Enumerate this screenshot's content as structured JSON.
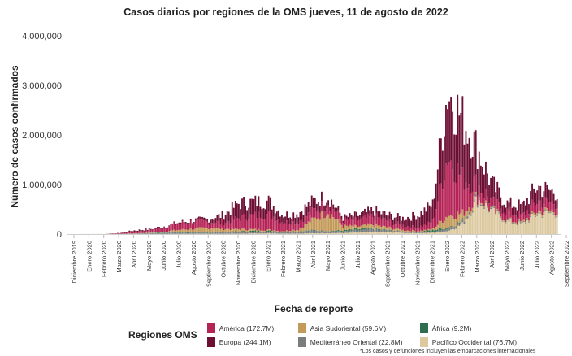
{
  "title": "Casos diarios por regiones de la OMS jueves, 11 de agosto de 2022",
  "legend_title": "Regiones OMS",
  "footnote": "*Los casos y defunciones incluyen las embarcaciones internacionales",
  "chart_data": {
    "type": "bar",
    "stacked": true,
    "title": "Casos diarios por regiones de la OMS jueves, 11 de agosto de 2022",
    "xlabel": "Fecha de reporte",
    "ylabel": "Número de casos confirmados",
    "ylim": [
      0,
      4000000
    ],
    "yticks": [
      0,
      1000000,
      2000000,
      3000000,
      4000000
    ],
    "ytick_labels": [
      "0",
      "1,000,000",
      "2,000,000",
      "3,000,000",
      "4,000,000"
    ],
    "x_tick_labels": [
      "Diciembre 2019",
      "Enero 2020",
      "Febrero 2020",
      "Marzo 2020",
      "Abril 2020",
      "Mayo 2020",
      "Junio 2020",
      "Julio 2020",
      "Agosto 2020",
      "Septiembre 2020",
      "Octubre 2020",
      "Noviembre 2020",
      "Diciembre 2020",
      "Enero 2021",
      "Febrero 2021",
      "Marzo 2021",
      "Abril 2021",
      "Mayo 2021",
      "Junio 2021",
      "Julio 2021",
      "Agosto 2021",
      "Septiembre 2021",
      "Octubre 2021",
      "Noviembre 2021",
      "Diciembre 2021",
      "Enero 2022",
      "Febrero 2022",
      "Marzo 2022",
      "Abril 2022",
      "Mayo 2022",
      "Junio 2022",
      "Julio 2022",
      "Agosto 2022",
      "Septiembre 2022"
    ],
    "grid": false,
    "legend_position": "bottom",
    "series_order": [
      "Pacífico Occidental",
      "Mediterráneo Oriental",
      "África",
      "Asia Sudoriental",
      "América",
      "Europa"
    ],
    "series": [
      {
        "name": "América (172.7M)",
        "color": "#b52456",
        "x": [
          "2019-12",
          "2020-01",
          "2020-02",
          "2020-03",
          "2020-04",
          "2020-05",
          "2020-06",
          "2020-07",
          "2020-08",
          "2020-09",
          "2020-10",
          "2020-11",
          "2020-12",
          "2021-01",
          "2021-02",
          "2021-03",
          "2021-04",
          "2021-05",
          "2021-06",
          "2021-07",
          "2021-08",
          "2021-09",
          "2021-10",
          "2021-11",
          "2021-12",
          "2022-01",
          "2022-02",
          "2022-03",
          "2022-04",
          "2022-05",
          "2022-06",
          "2022-07",
          "2022-08"
        ],
        "values": [
          0,
          0,
          0,
          10000,
          30000,
          50000,
          90000,
          130000,
          140000,
          120000,
          130000,
          220000,
          280000,
          320000,
          180000,
          150000,
          170000,
          190000,
          120000,
          130000,
          170000,
          130000,
          90000,
          70000,
          150000,
          1200000,
          700000,
          250000,
          150000,
          180000,
          130000,
          200000,
          170000
        ]
      },
      {
        "name": "Europa (244.1M)",
        "color": "#6d0f33",
        "x": [
          "2019-12",
          "2020-01",
          "2020-02",
          "2020-03",
          "2020-04",
          "2020-05",
          "2020-06",
          "2020-07",
          "2020-08",
          "2020-09",
          "2020-10",
          "2020-11",
          "2020-12",
          "2021-01",
          "2021-02",
          "2021-03",
          "2021-04",
          "2021-05",
          "2021-06",
          "2021-07",
          "2021-08",
          "2021-09",
          "2021-10",
          "2021-11",
          "2021-12",
          "2022-01",
          "2022-02",
          "2022-03",
          "2022-04",
          "2022-05",
          "2022-06",
          "2022-07",
          "2022-08"
        ],
        "values": [
          0,
          0,
          0,
          5000,
          30000,
          20000,
          15000,
          20000,
          30000,
          60000,
          150000,
          300000,
          280000,
          260000,
          150000,
          180000,
          200000,
          120000,
          50000,
          100000,
          120000,
          120000,
          150000,
          250000,
          350000,
          1300000,
          1200000,
          700000,
          350000,
          150000,
          200000,
          300000,
          220000
        ]
      },
      {
        "name": "Asia Sudoriental (59.6M)",
        "color": "#c49a5a",
        "x": [
          "2019-12",
          "2020-01",
          "2020-02",
          "2020-03",
          "2020-04",
          "2020-05",
          "2020-06",
          "2020-07",
          "2020-08",
          "2020-09",
          "2020-10",
          "2020-11",
          "2020-12",
          "2021-01",
          "2021-02",
          "2021-03",
          "2021-04",
          "2021-05",
          "2021-06",
          "2021-07",
          "2021-08",
          "2021-09",
          "2021-10",
          "2021-11",
          "2021-12",
          "2022-01",
          "2022-02",
          "2022-03",
          "2022-04",
          "2022-05",
          "2022-06",
          "2022-07",
          "2022-08"
        ],
        "values": [
          0,
          0,
          0,
          0,
          2000,
          8000,
          15000,
          40000,
          70000,
          95000,
          70000,
          45000,
          30000,
          20000,
          15000,
          35000,
          220000,
          380000,
          90000,
          50000,
          80000,
          50000,
          30000,
          20000,
          20000,
          250000,
          150000,
          30000,
          15000,
          15000,
          20000,
          40000,
          30000
        ]
      },
      {
        "name": "Europa (244.1M)",
        "color": "#6d0f33",
        "values": []
      },
      {
        "name": "África (9.2M)",
        "color": "#2e6e4f",
        "x": [
          "2019-12",
          "2020-01",
          "2020-02",
          "2020-03",
          "2020-04",
          "2020-05",
          "2020-06",
          "2020-07",
          "2020-08",
          "2020-09",
          "2020-10",
          "2020-11",
          "2020-12",
          "2021-01",
          "2021-02",
          "2021-03",
          "2021-04",
          "2021-05",
          "2021-06",
          "2021-07",
          "2021-08",
          "2021-09",
          "2021-10",
          "2021-11",
          "2021-12",
          "2022-01",
          "2022-02",
          "2022-03",
          "2022-04",
          "2022-05",
          "2022-06",
          "2022-07",
          "2022-08"
        ],
        "values": [
          0,
          0,
          0,
          0,
          1000,
          3000,
          8000,
          15000,
          10000,
          6000,
          7000,
          10000,
          20000,
          25000,
          10000,
          8000,
          8000,
          8000,
          20000,
          25000,
          15000,
          8000,
          5000,
          7000,
          40000,
          20000,
          8000,
          4000,
          4000,
          6000,
          7000,
          5000,
          4000
        ]
      },
      {
        "name": "Mediterráneo Oriental (22.8M)",
        "color": "#7a7d7e",
        "x": [
          "2019-12",
          "2020-01",
          "2020-02",
          "2020-03",
          "2020-04",
          "2020-05",
          "2020-06",
          "2020-07",
          "2020-08",
          "2020-09",
          "2020-10",
          "2020-11",
          "2020-12",
          "2021-01",
          "2021-02",
          "2021-03",
          "2021-04",
          "2021-05",
          "2021-06",
          "2021-07",
          "2021-08",
          "2021-09",
          "2021-10",
          "2021-11",
          "2021-12",
          "2022-01",
          "2022-02",
          "2022-03",
          "2022-04",
          "2022-05",
          "2022-06",
          "2022-07",
          "2022-08"
        ],
        "values": [
          0,
          0,
          0,
          3000,
          8000,
          15000,
          25000,
          25000,
          20000,
          20000,
          25000,
          35000,
          30000,
          25000,
          25000,
          40000,
          55000,
          40000,
          30000,
          45000,
          50000,
          35000,
          20000,
          15000,
          15000,
          50000,
          60000,
          30000,
          15000,
          10000,
          10000,
          15000,
          15000
        ]
      },
      {
        "name": "Pacífico Occidental (76.7M)",
        "color": "#dcc9a0",
        "x": [
          "2019-12",
          "2020-01",
          "2020-02",
          "2020-03",
          "2020-04",
          "2020-05",
          "2020-06",
          "2020-07",
          "2020-08",
          "2020-09",
          "2020-10",
          "2020-11",
          "2020-12",
          "2021-01",
          "2021-02",
          "2021-03",
          "2021-04",
          "2021-05",
          "2021-06",
          "2021-07",
          "2021-08",
          "2021-09",
          "2021-10",
          "2021-11",
          "2021-12",
          "2022-01",
          "2022-02",
          "2022-03",
          "2022-04",
          "2022-05",
          "2022-06",
          "2022-07",
          "2022-08"
        ],
        "values": [
          0,
          2000,
          3000,
          2000,
          3000,
          2000,
          3000,
          5000,
          6000,
          6000,
          6000,
          8000,
          12000,
          15000,
          10000,
          10000,
          15000,
          20000,
          20000,
          30000,
          40000,
          40000,
          25000,
          20000,
          25000,
          60000,
          200000,
          700000,
          450000,
          250000,
          200000,
          400000,
          420000
        ]
      }
    ]
  },
  "legend": [
    {
      "label": "América  (172.7M)",
      "color": "#b52456"
    },
    {
      "label": "Asia Sudoriental  (59.6M)",
      "color": "#c49a5a"
    },
    {
      "label": "África  (9.2M)",
      "color": "#2e6e4f"
    },
    {
      "label": "Europa  (244.1M)",
      "color": "#6d0f33"
    },
    {
      "label": "Mediterráneo Oriental  (22.8M)",
      "color": "#7a7d7e"
    },
    {
      "label": "Pacífico Occidental  (76.7M)",
      "color": "#dcc9a0"
    }
  ]
}
